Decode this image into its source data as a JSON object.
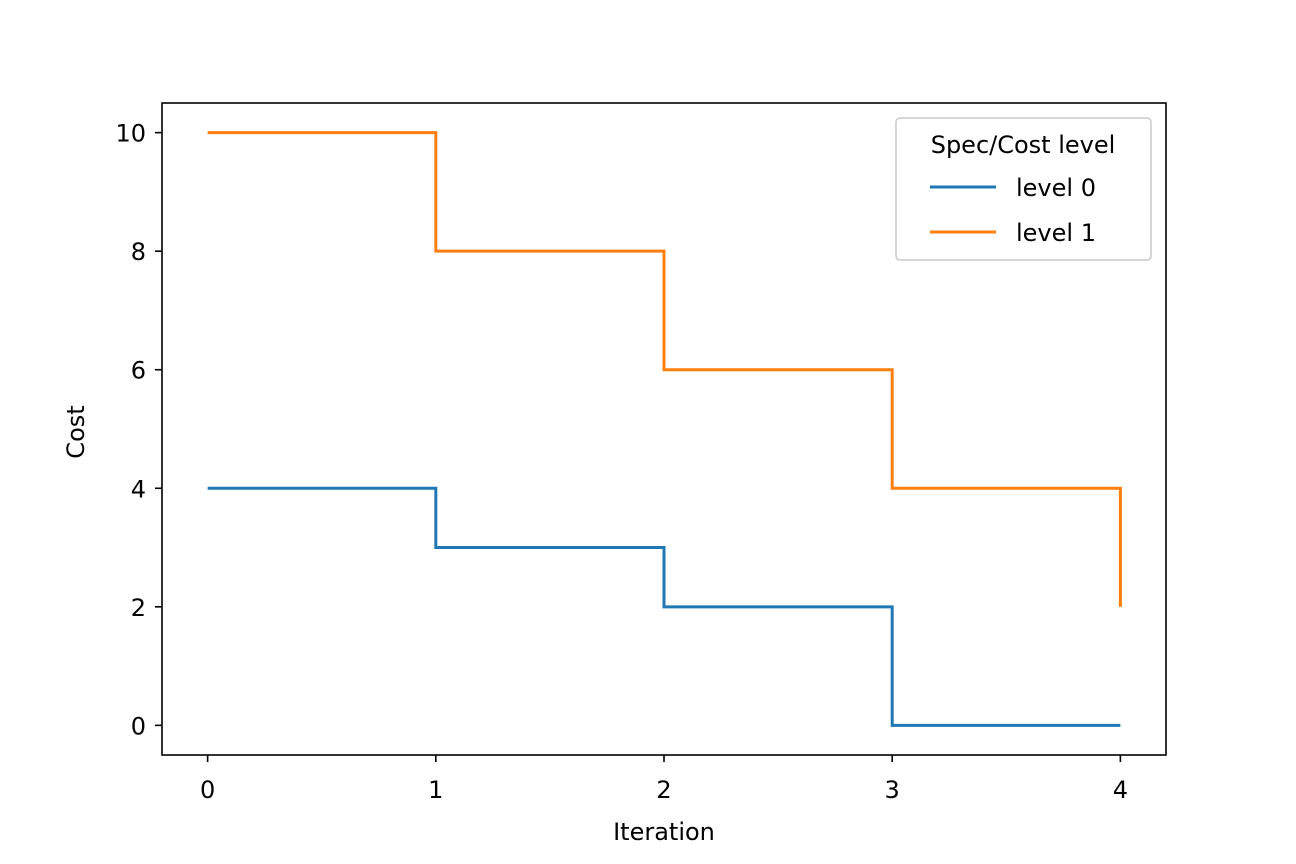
{
  "chart_data": {
    "type": "line",
    "step": "post",
    "x": [
      0,
      1,
      2,
      3,
      4
    ],
    "series": [
      {
        "name": "level 0",
        "values": [
          4,
          3,
          2,
          0,
          0
        ],
        "color": "#1f77b4"
      },
      {
        "name": "level 1",
        "values": [
          10,
          8,
          6,
          4,
          2
        ],
        "color": "#ff7f0e"
      }
    ],
    "xlabel": "Iteration",
    "ylabel": "Cost",
    "xlim": [
      -0.2,
      4.2
    ],
    "ylim": [
      -0.5,
      10.5
    ],
    "xticks": [
      0,
      1,
      2,
      3,
      4
    ],
    "yticks": [
      0,
      2,
      4,
      6,
      8,
      10
    ],
    "grid": false,
    "legend": {
      "title": "Spec/Cost level",
      "position": "top-right"
    }
  }
}
